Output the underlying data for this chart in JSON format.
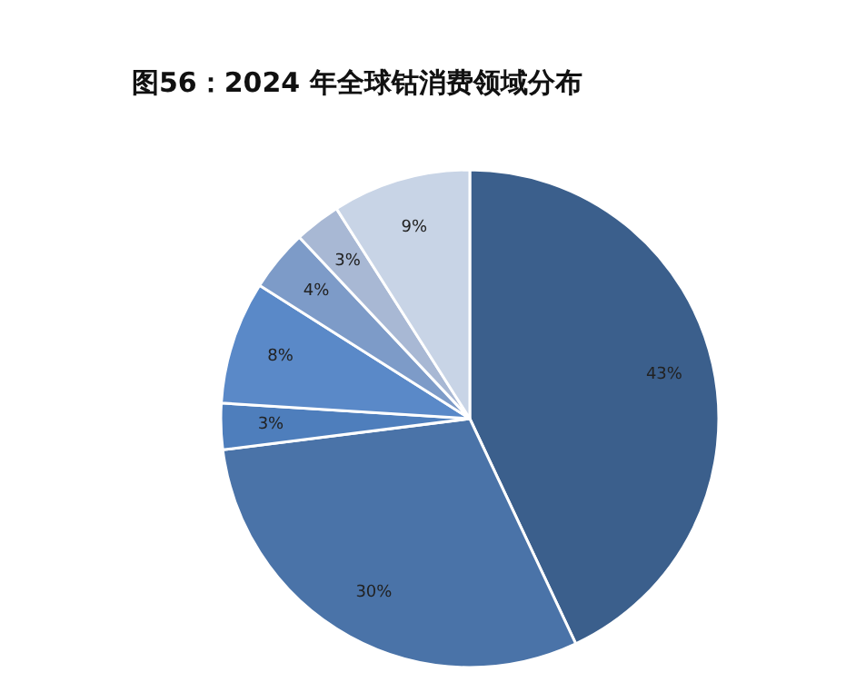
{
  "chart_data": {
    "type": "pie",
    "title": "图56：2024 年全球钴消费领域分布",
    "categories": [
      null,
      null,
      null,
      null,
      null,
      null,
      null
    ],
    "values": [
      43,
      30,
      3,
      8,
      4,
      3,
      9
    ],
    "value_labels": [
      "43%",
      "30%",
      "3%",
      "8%",
      "4%",
      "3%",
      "9%"
    ],
    "colors": [
      "#3b5f8c",
      "#4a73a8",
      "#4e7ebc",
      "#5a89c8",
      "#7d9bc8",
      "#a8b8d4",
      "#c8d4e6"
    ]
  }
}
